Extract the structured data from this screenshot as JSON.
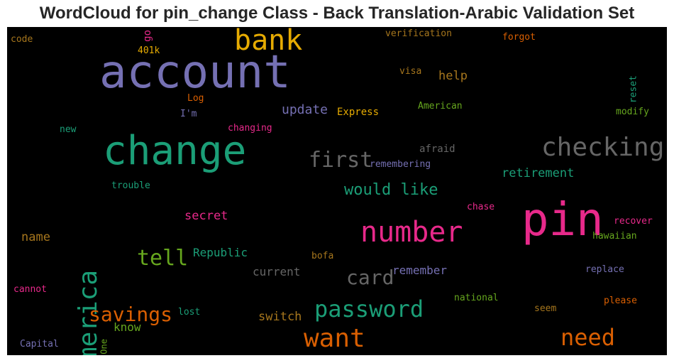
{
  "chart_data": {
    "type": "wordcloud",
    "title": "WordCloud for pin_change Class - Back Translation-Arabic Validation Set",
    "background": "#000000",
    "colormap": [
      "#1b9e77",
      "#d95f02",
      "#7570b3",
      "#e7298a",
      "#66a61e",
      "#e6ab02",
      "#a6761d",
      "#666666"
    ],
    "words": [
      {
        "text": "account",
        "color": "#7570b3"
      },
      {
        "text": "change",
        "color": "#1b9e77"
      },
      {
        "text": "pin",
        "color": "#e7298a"
      },
      {
        "text": "bank",
        "color": "#e6ab02"
      },
      {
        "text": "number",
        "color": "#e7298a"
      },
      {
        "text": "checking",
        "color": "#666666"
      },
      {
        "text": "america",
        "color": "#1b9e77"
      },
      {
        "text": "password",
        "color": "#1b9e77"
      },
      {
        "text": "want",
        "color": "#d95f02"
      },
      {
        "text": "first",
        "color": "#666666"
      },
      {
        "text": "need",
        "color": "#d95f02"
      },
      {
        "text": "savings",
        "color": "#d95f02"
      },
      {
        "text": "tell",
        "color": "#66a61e"
      },
      {
        "text": "card",
        "color": "#666666"
      },
      {
        "text": "would like",
        "color": "#1b9e77"
      },
      {
        "text": "update",
        "color": "#7570b3"
      },
      {
        "text": "retirement",
        "color": "#1b9e77"
      },
      {
        "text": "secret",
        "color": "#e7298a"
      },
      {
        "text": "name",
        "color": "#a6761d"
      },
      {
        "text": "Republic",
        "color": "#1b9e77"
      },
      {
        "text": "remember",
        "color": "#7570b3"
      },
      {
        "text": "current",
        "color": "#666666"
      },
      {
        "text": "switch",
        "color": "#a6761d"
      },
      {
        "text": "know",
        "color": "#66a61e"
      },
      {
        "text": "help",
        "color": "#a6761d"
      },
      {
        "text": "reset",
        "color": "#1b9e77"
      },
      {
        "text": "verification",
        "color": "#a6761d"
      },
      {
        "text": "forgot",
        "color": "#d95f02"
      },
      {
        "text": "code",
        "color": "#a6761d"
      },
      {
        "text": "go",
        "color": "#e7298a"
      },
      {
        "text": "401k",
        "color": "#e6ab02"
      },
      {
        "text": "visa",
        "color": "#a6761d"
      },
      {
        "text": "Log",
        "color": "#d95f02"
      },
      {
        "text": "I'm",
        "color": "#7570b3"
      },
      {
        "text": "American",
        "color": "#66a61e"
      },
      {
        "text": "Express",
        "color": "#e6ab02"
      },
      {
        "text": "modify",
        "color": "#66a61e"
      },
      {
        "text": "new",
        "color": "#1b9e77"
      },
      {
        "text": "changing",
        "color": "#e7298a"
      },
      {
        "text": "afraid",
        "color": "#666666"
      },
      {
        "text": "remembering",
        "color": "#7570b3"
      },
      {
        "text": "trouble",
        "color": "#1b9e77"
      },
      {
        "text": "chase",
        "color": "#e7298a"
      },
      {
        "text": "recover",
        "color": "#e7298a"
      },
      {
        "text": "hawaiian",
        "color": "#66a61e"
      },
      {
        "text": "bofa",
        "color": "#a6761d"
      },
      {
        "text": "replace",
        "color": "#7570b3"
      },
      {
        "text": "cannot",
        "color": "#e7298a"
      },
      {
        "text": "national",
        "color": "#66a61e"
      },
      {
        "text": "please",
        "color": "#d95f02"
      },
      {
        "text": "lost",
        "color": "#1b9e77"
      },
      {
        "text": "seem",
        "color": "#a6761d"
      },
      {
        "text": "One",
        "color": "#66a61e"
      },
      {
        "text": "Capital",
        "color": "#7570b3"
      }
    ]
  }
}
